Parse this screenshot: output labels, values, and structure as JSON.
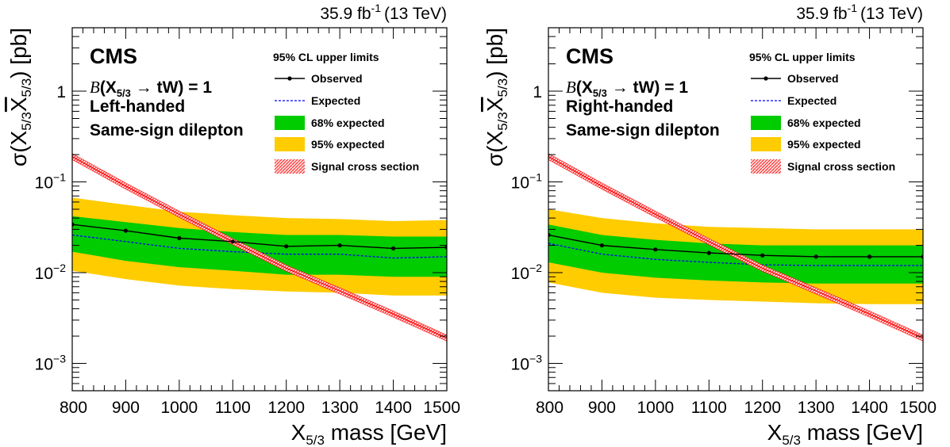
{
  "chart_data": [
    {
      "type": "line",
      "lumi_label": "35.9 fb",
      "lumi_sup": "-1",
      "energy_label": "(13 TeV)",
      "experiment": "CMS",
      "br_label": {
        "b": "B",
        "open": "(X",
        "sub": "5/3",
        "arrow": " → ",
        "rest": "tW) = 1"
      },
      "handedness": "Left-handed",
      "channel": "Same-sign dilepton",
      "legend_title": "95% CL upper limits",
      "legend_items": [
        {
          "key": "observed",
          "label": "Observed"
        },
        {
          "key": "expected",
          "label": "Expected"
        },
        {
          "key": "band68",
          "label": "68% expected"
        },
        {
          "key": "band95",
          "label": "95% expected"
        },
        {
          "key": "signal",
          "label": "Signal cross section"
        }
      ],
      "ylabel": {
        "pre": "σ(X",
        "sub1": "5/3",
        "mid": "X",
        "sub2": "5/3",
        "post": ") [pb]"
      },
      "xlabel": {
        "pre": "X",
        "sub": "5/3",
        "post": " mass [GeV]"
      },
      "xlim": [
        800,
        1500
      ],
      "ylim": [
        0.0005,
        5
      ],
      "yscale": "log",
      "x_ticks": [
        800,
        900,
        1000,
        1100,
        1200,
        1300,
        1400,
        1500
      ],
      "y_ticks": [
        {
          "v": 1,
          "label": "1"
        },
        {
          "v": 0.1,
          "base": "10",
          "exp": "−1"
        },
        {
          "v": 0.01,
          "base": "10",
          "exp": "−2"
        },
        {
          "v": 0.001,
          "base": "10",
          "exp": "−3"
        }
      ],
      "x": [
        800,
        900,
        1000,
        1100,
        1200,
        1300,
        1400,
        1500
      ],
      "series": [
        {
          "name": "Observed",
          "values": [
            0.034,
            0.029,
            0.024,
            0.022,
            0.0195,
            0.02,
            0.0185,
            0.019
          ]
        },
        {
          "name": "Expected",
          "values": [
            0.026,
            0.022,
            0.0185,
            0.017,
            0.016,
            0.016,
            0.0145,
            0.015
          ]
        },
        {
          "name": "68% expected low",
          "values": [
            0.017,
            0.0135,
            0.0115,
            0.0105,
            0.0095,
            0.0095,
            0.009,
            0.009
          ]
        },
        {
          "name": "68% expected high",
          "values": [
            0.042,
            0.036,
            0.031,
            0.028,
            0.026,
            0.026,
            0.025,
            0.025
          ]
        },
        {
          "name": "95% expected low",
          "values": [
            0.0105,
            0.0085,
            0.0072,
            0.0066,
            0.0062,
            0.006,
            0.0056,
            0.0056
          ]
        },
        {
          "name": "95% expected high",
          "values": [
            0.067,
            0.056,
            0.047,
            0.043,
            0.04,
            0.039,
            0.037,
            0.038
          ]
        },
        {
          "name": "Signal cross section",
          "values": [
            0.19,
            0.09,
            0.044,
            0.022,
            0.0112,
            0.0063,
            0.0035,
            0.0019
          ]
        }
      ]
    },
    {
      "type": "line",
      "lumi_label": "35.9 fb",
      "lumi_sup": "-1",
      "energy_label": "(13 TeV)",
      "experiment": "CMS",
      "br_label": {
        "b": "B",
        "open": "(X",
        "sub": "5/3",
        "arrow": " → ",
        "rest": "tW) = 1"
      },
      "handedness": "Right-handed",
      "channel": "Same-sign dilepton",
      "legend_title": "95% CL upper limits",
      "legend_items": [
        {
          "key": "observed",
          "label": "Observed"
        },
        {
          "key": "expected",
          "label": "Expected"
        },
        {
          "key": "band68",
          "label": "68% expected"
        },
        {
          "key": "band95",
          "label": "95% expected"
        },
        {
          "key": "signal",
          "label": "Signal cross section"
        }
      ],
      "ylabel": {
        "pre": "σ(X",
        "sub1": "5/3",
        "mid": "X",
        "sub2": "5/3",
        "post": ") [pb]"
      },
      "xlabel": {
        "pre": "X",
        "sub": "5/3",
        "post": " mass [GeV]"
      },
      "xlim": [
        800,
        1500
      ],
      "ylim": [
        0.0005,
        5
      ],
      "yscale": "log",
      "x_ticks": [
        800,
        900,
        1000,
        1100,
        1200,
        1300,
        1400,
        1500
      ],
      "y_ticks": [
        {
          "v": 1,
          "label": "1"
        },
        {
          "v": 0.1,
          "base": "10",
          "exp": "−1"
        },
        {
          "v": 0.01,
          "base": "10",
          "exp": "−2"
        },
        {
          "v": 0.001,
          "base": "10",
          "exp": "−3"
        }
      ],
      "x": [
        800,
        900,
        1000,
        1100,
        1200,
        1300,
        1400,
        1500
      ],
      "series": [
        {
          "name": "Observed",
          "values": [
            0.026,
            0.02,
            0.018,
            0.0165,
            0.0155,
            0.015,
            0.015,
            0.015
          ]
        },
        {
          "name": "Expected",
          "values": [
            0.021,
            0.016,
            0.014,
            0.013,
            0.0122,
            0.012,
            0.012,
            0.012
          ]
        },
        {
          "name": "68% expected low",
          "values": [
            0.013,
            0.01,
            0.0088,
            0.0082,
            0.0078,
            0.0076,
            0.0076,
            0.0076
          ]
        },
        {
          "name": "68% expected high",
          "values": [
            0.034,
            0.026,
            0.023,
            0.021,
            0.02,
            0.02,
            0.02,
            0.02
          ]
        },
        {
          "name": "95% expected low",
          "values": [
            0.0078,
            0.006,
            0.0053,
            0.005,
            0.0048,
            0.0046,
            0.0045,
            0.0045
          ]
        },
        {
          "name": "95% expected high",
          "values": [
            0.05,
            0.04,
            0.035,
            0.032,
            0.031,
            0.03,
            0.03,
            0.03
          ]
        },
        {
          "name": "Signal cross section",
          "values": [
            0.19,
            0.09,
            0.044,
            0.022,
            0.0112,
            0.0063,
            0.0035,
            0.0019
          ]
        }
      ]
    }
  ],
  "colors": {
    "band95": "#ffcc00",
    "band68": "#00cc00",
    "observed": "#000000",
    "expected": "#0000ff",
    "signal": "#ff0000",
    "signal_fill": "#ff9999"
  }
}
